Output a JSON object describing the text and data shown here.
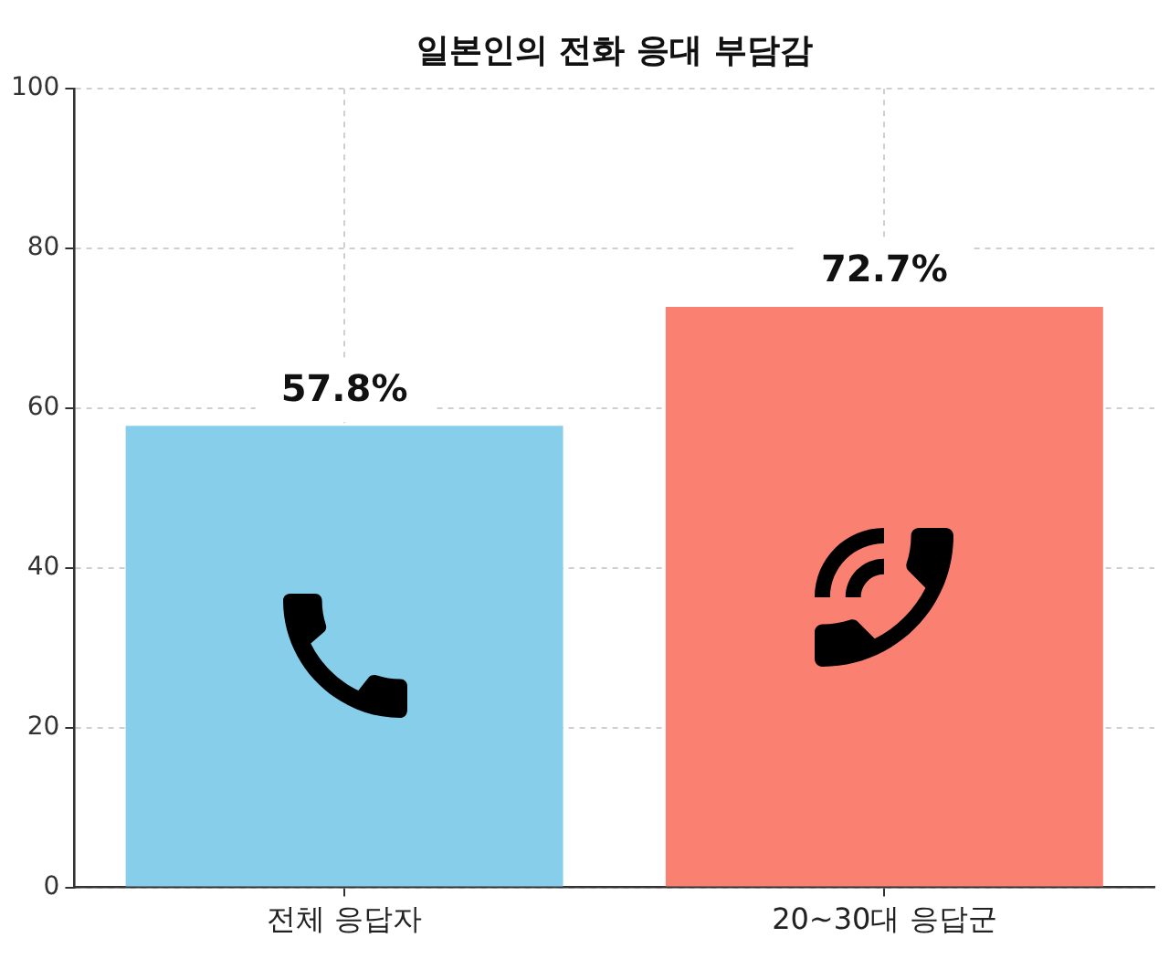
{
  "chart_data": {
    "type": "bar",
    "title": "일본인의 전화 응대 부담감",
    "categories": [
      "전체 응답자",
      "20~30대 응답군"
    ],
    "values": [
      57.8,
      72.7
    ],
    "colors": [
      "#87ceeb",
      "#fa8072"
    ],
    "value_labels": [
      "57.8%",
      "72.7%"
    ],
    "ylim": [
      0,
      100
    ],
    "yticks": [
      0,
      20,
      40,
      60,
      80,
      100
    ],
    "grid": true
  }
}
